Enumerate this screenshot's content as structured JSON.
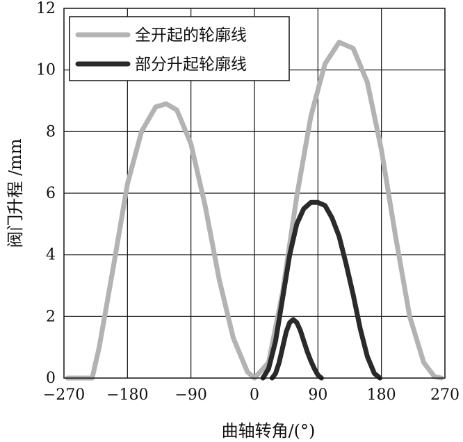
{
  "chart_data": {
    "type": "line",
    "xlabel": "曲轴转角/(°)",
    "ylabel": "阀门升程 /mm",
    "xlim": [
      -270,
      270
    ],
    "ylim": [
      0,
      12
    ],
    "xticks": [
      -270,
      -180,
      -90,
      0,
      90,
      180,
      270
    ],
    "yticks": [
      0,
      2,
      4,
      6,
      8,
      10,
      12
    ],
    "xtick_labels": [
      "−270",
      "−180",
      "−90",
      "0",
      "90",
      "180",
      "270"
    ],
    "ytick_labels": [
      "0",
      "2",
      "4",
      "6",
      "8",
      "10",
      "12"
    ],
    "grid": true,
    "legend_position": "top-left",
    "series": [
      {
        "name": "全开起的轮廓线",
        "color": "#b3b3b3",
        "segments": [
          {
            "x": [
              -265,
              -230,
              -220,
              -200,
              -180,
              -160,
              -140,
              -125,
              -110,
              -90,
              -70,
              -50,
              -30,
              -10,
              0
            ],
            "y": [
              0,
              0,
              1.0,
              3.6,
              6.3,
              8.0,
              8.8,
              8.9,
              8.7,
              7.6,
              5.6,
              3.2,
              1.3,
              0.2,
              0
            ]
          },
          {
            "x": [
              0,
              20,
              40,
              60,
              80,
              100,
              120,
              140,
              160,
              180,
              200,
              220,
              240,
              255,
              265
            ],
            "y": [
              0,
              0.5,
              2.8,
              5.9,
              8.5,
              10.2,
              10.9,
              10.7,
              9.6,
              7.4,
              4.6,
              2.0,
              0.5,
              0.05,
              0
            ]
          }
        ]
      },
      {
        "name": "部分升起轮廓线",
        "color": "#2a2a2a",
        "segments": [
          {
            "x": [
              12,
              20,
              30,
              40,
              50,
              60,
              70,
              80,
              90,
              100,
              110,
              120,
              130,
              140,
              150,
              160,
              170,
              178
            ],
            "y": [
              0,
              0.3,
              1.2,
              2.6,
              4.0,
              5.0,
              5.5,
              5.7,
              5.7,
              5.6,
              5.2,
              4.6,
              3.7,
              2.7,
              1.6,
              0.7,
              0.15,
              0
            ]
          },
          {
            "x": [
              25,
              30,
              35,
              40,
              45,
              50,
              55,
              60,
              65,
              70,
              75,
              80,
              85,
              90,
              95
            ],
            "y": [
              0,
              0.15,
              0.5,
              1.0,
              1.5,
              1.8,
              1.9,
              1.8,
              1.55,
              1.2,
              0.85,
              0.55,
              0.3,
              0.1,
              0
            ]
          }
        ]
      }
    ]
  }
}
